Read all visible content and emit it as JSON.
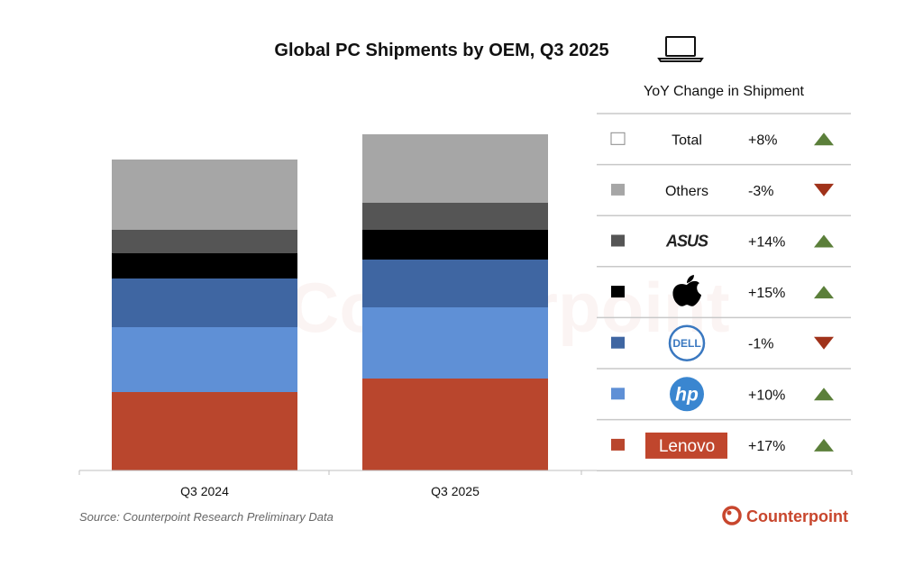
{
  "chart_data": {
    "type": "bar",
    "stacked": true,
    "title": "Global PC Shipments by OEM, Q3 2025",
    "categories": [
      "Q3 2024",
      "Q3 2025"
    ],
    "xlabel": "",
    "ylabel": "",
    "y_axis_labels_shown": false,
    "ylim": [
      0,
      400
    ],
    "series": [
      {
        "name": "Lenovo",
        "color": "#B9462D",
        "values": [
          87,
          102
        ]
      },
      {
        "name": "HP",
        "color": "#5F90D6",
        "values": [
          72,
          79
        ]
      },
      {
        "name": "Dell",
        "color": "#3F66A2",
        "values": [
          54,
          53
        ]
      },
      {
        "name": "Apple",
        "color": "#000000",
        "values": [
          28,
          33
        ]
      },
      {
        "name": "ASUS",
        "color": "#555555",
        "values": [
          26,
          30
        ]
      },
      {
        "name": "Others",
        "color": "#A6A6A6",
        "values": [
          78,
          76
        ]
      }
    ],
    "legend_table": {
      "title": "YoY Change in Shipment",
      "placement": "right",
      "rows": [
        {
          "name": "Total",
          "logo": "text",
          "change": "+8%",
          "direction": "up"
        },
        {
          "name": "Others",
          "logo": "text",
          "change": "-3%",
          "direction": "down"
        },
        {
          "name": "ASUS",
          "logo": "asus-logo",
          "change": "+14%",
          "direction": "up"
        },
        {
          "name": "Apple",
          "logo": "apple-logo",
          "change": "+15%",
          "direction": "up"
        },
        {
          "name": "Dell",
          "logo": "dell-logo",
          "change": "-1%",
          "direction": "down"
        },
        {
          "name": "HP",
          "logo": "hp-logo",
          "change": "+10%",
          "direction": "up"
        },
        {
          "name": "Lenovo",
          "logo": "lenovo-logo",
          "change": "+17%",
          "direction": "up"
        }
      ]
    },
    "colors": {
      "up": "#5B7F3A",
      "down": "#A0321A",
      "brand": "#C8462D"
    },
    "source": "Source: Counterpoint Research Preliminary Data",
    "brand": "Counterpoint",
    "title_icon": "laptop-icon"
  }
}
